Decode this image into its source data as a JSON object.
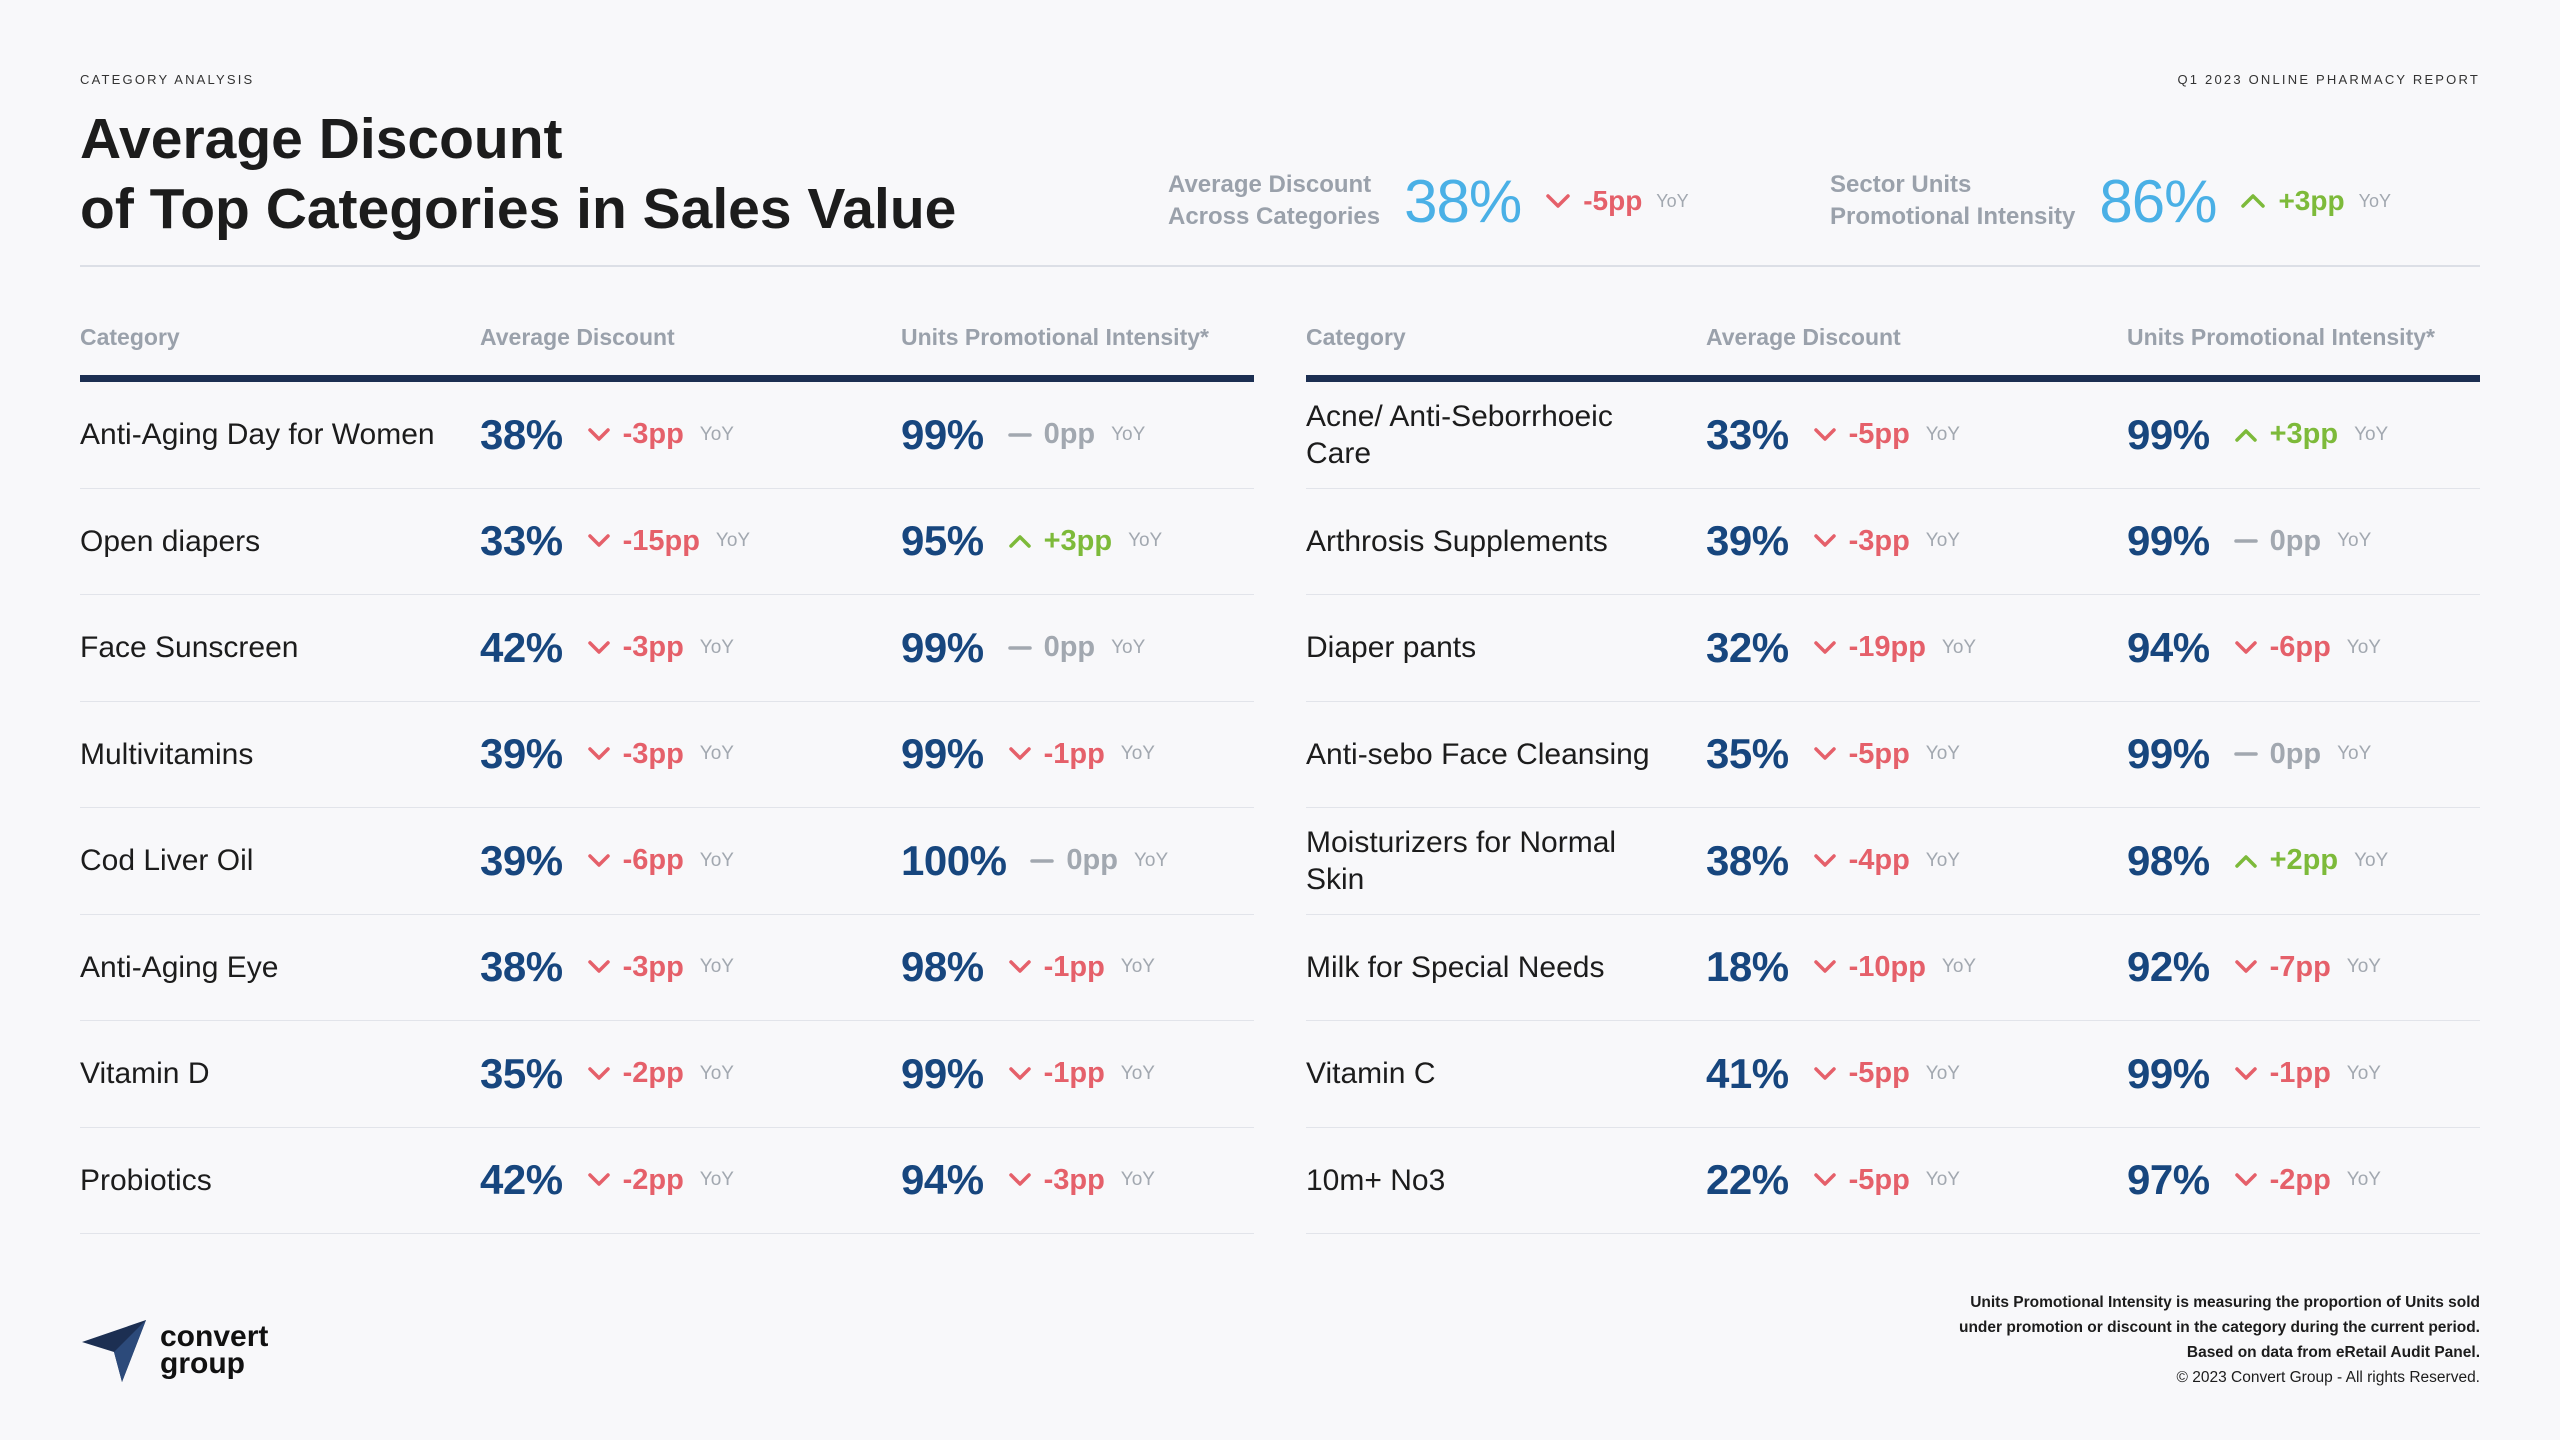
{
  "header": {
    "eyebrow": "CATEGORY ANALYSIS",
    "report": "Q1 2023 ONLINE PHARMACY REPORT",
    "title_line1": "Average Discount",
    "title_line2": "of Top Categories in Sales Value"
  },
  "kpis": [
    {
      "label_line1": "Average Discount",
      "label_line2": "Across Categories",
      "value": "38%",
      "change": "-5pp",
      "direction": "down",
      "yoy": "YoY"
    },
    {
      "label_line1": "Sector Units",
      "label_line2": "Promotional Intensity",
      "value": "86%",
      "change": "+3pp",
      "direction": "up",
      "yoy": "YoY"
    }
  ],
  "columns": {
    "category": "Category",
    "discount": "Average Discount",
    "intensity": "Units Promotional Intensity*"
  },
  "left_rows": [
    {
      "category": "Anti-Aging Day for Women",
      "discount": "38%",
      "discount_change": "-3pp",
      "discount_dir": "down",
      "intensity": "99%",
      "intensity_change": "0pp",
      "intensity_dir": "flat",
      "yoy": "YoY"
    },
    {
      "category": "Open diapers",
      "discount": "33%",
      "discount_change": "-15pp",
      "discount_dir": "down",
      "intensity": "95%",
      "intensity_change": "+3pp",
      "intensity_dir": "up",
      "yoy": "YoY"
    },
    {
      "category": "Face Sunscreen",
      "discount": "42%",
      "discount_change": "-3pp",
      "discount_dir": "down",
      "intensity": "99%",
      "intensity_change": "0pp",
      "intensity_dir": "flat",
      "yoy": "YoY"
    },
    {
      "category": "Multivitamins",
      "discount": "39%",
      "discount_change": "-3pp",
      "discount_dir": "down",
      "intensity": "99%",
      "intensity_change": "-1pp",
      "intensity_dir": "down",
      "yoy": "YoY"
    },
    {
      "category": "Cod Liver Oil",
      "discount": "39%",
      "discount_change": "-6pp",
      "discount_dir": "down",
      "intensity": "100%",
      "intensity_change": "0pp",
      "intensity_dir": "flat",
      "yoy": "YoY"
    },
    {
      "category": "Anti-Aging Eye",
      "discount": "38%",
      "discount_change": "-3pp",
      "discount_dir": "down",
      "intensity": "98%",
      "intensity_change": "-1pp",
      "intensity_dir": "down",
      "yoy": "YoY"
    },
    {
      "category": "Vitamin D",
      "discount": "35%",
      "discount_change": "-2pp",
      "discount_dir": "down",
      "intensity": "99%",
      "intensity_change": "-1pp",
      "intensity_dir": "down",
      "yoy": "YoY"
    },
    {
      "category": "Probiotics",
      "discount": "42%",
      "discount_change": "-2pp",
      "discount_dir": "down",
      "intensity": "94%",
      "intensity_change": "-3pp",
      "intensity_dir": "down",
      "yoy": "YoY"
    }
  ],
  "right_rows": [
    {
      "category": "Acne/ Anti-Seborrhoeic Care",
      "discount": "33%",
      "discount_change": "-5pp",
      "discount_dir": "down",
      "intensity": "99%",
      "intensity_change": "+3pp",
      "intensity_dir": "up",
      "yoy": "YoY"
    },
    {
      "category": "Arthrosis Supplements",
      "discount": "39%",
      "discount_change": "-3pp",
      "discount_dir": "down",
      "intensity": "99%",
      "intensity_change": "0pp",
      "intensity_dir": "flat",
      "yoy": "YoY"
    },
    {
      "category": "Diaper pants",
      "discount": "32%",
      "discount_change": "-19pp",
      "discount_dir": "down",
      "intensity": "94%",
      "intensity_change": "-6pp",
      "intensity_dir": "down",
      "yoy": "YoY"
    },
    {
      "category": "Anti-sebo Face Cleansing",
      "discount": "35%",
      "discount_change": "-5pp",
      "discount_dir": "down",
      "intensity": "99%",
      "intensity_change": "0pp",
      "intensity_dir": "flat",
      "yoy": "YoY"
    },
    {
      "category": "Moisturizers for Normal Skin",
      "discount": "38%",
      "discount_change": "-4pp",
      "discount_dir": "down",
      "intensity": "98%",
      "intensity_change": "+2pp",
      "intensity_dir": "up",
      "yoy": "YoY"
    },
    {
      "category": "Milk for Special Needs",
      "discount": "18%",
      "discount_change": "-10pp",
      "discount_dir": "down",
      "intensity": "92%",
      "intensity_change": "-7pp",
      "intensity_dir": "down",
      "yoy": "YoY"
    },
    {
      "category": "Vitamin C",
      "discount": "41%",
      "discount_change": "-5pp",
      "discount_dir": "down",
      "intensity": "99%",
      "intensity_change": "-1pp",
      "intensity_dir": "down",
      "yoy": "YoY"
    },
    {
      "category": "10m+ No3",
      "discount": "22%",
      "discount_change": "-5pp",
      "discount_dir": "down",
      "intensity": "97%",
      "intensity_change": "-2pp",
      "intensity_dir": "down",
      "yoy": "YoY"
    }
  ],
  "footer": {
    "logo_line1": "convert",
    "logo_line2": "group",
    "note_line1": "Units Promotional Intensity is measuring the proportion of Units sold",
    "note_line2": "under promotion or discount in the category during the current period.",
    "note_line3": "Based on data from eRetail Audit Panel.",
    "copyright": "© 2023 Convert Group - All rights Reserved."
  },
  "colors": {
    "down": "#e5606a",
    "up": "#7dba3a",
    "flat": "#a2a8b0",
    "value": "#17467e",
    "kpi_value": "#4ab0e6",
    "rule": "#1c2f52"
  }
}
